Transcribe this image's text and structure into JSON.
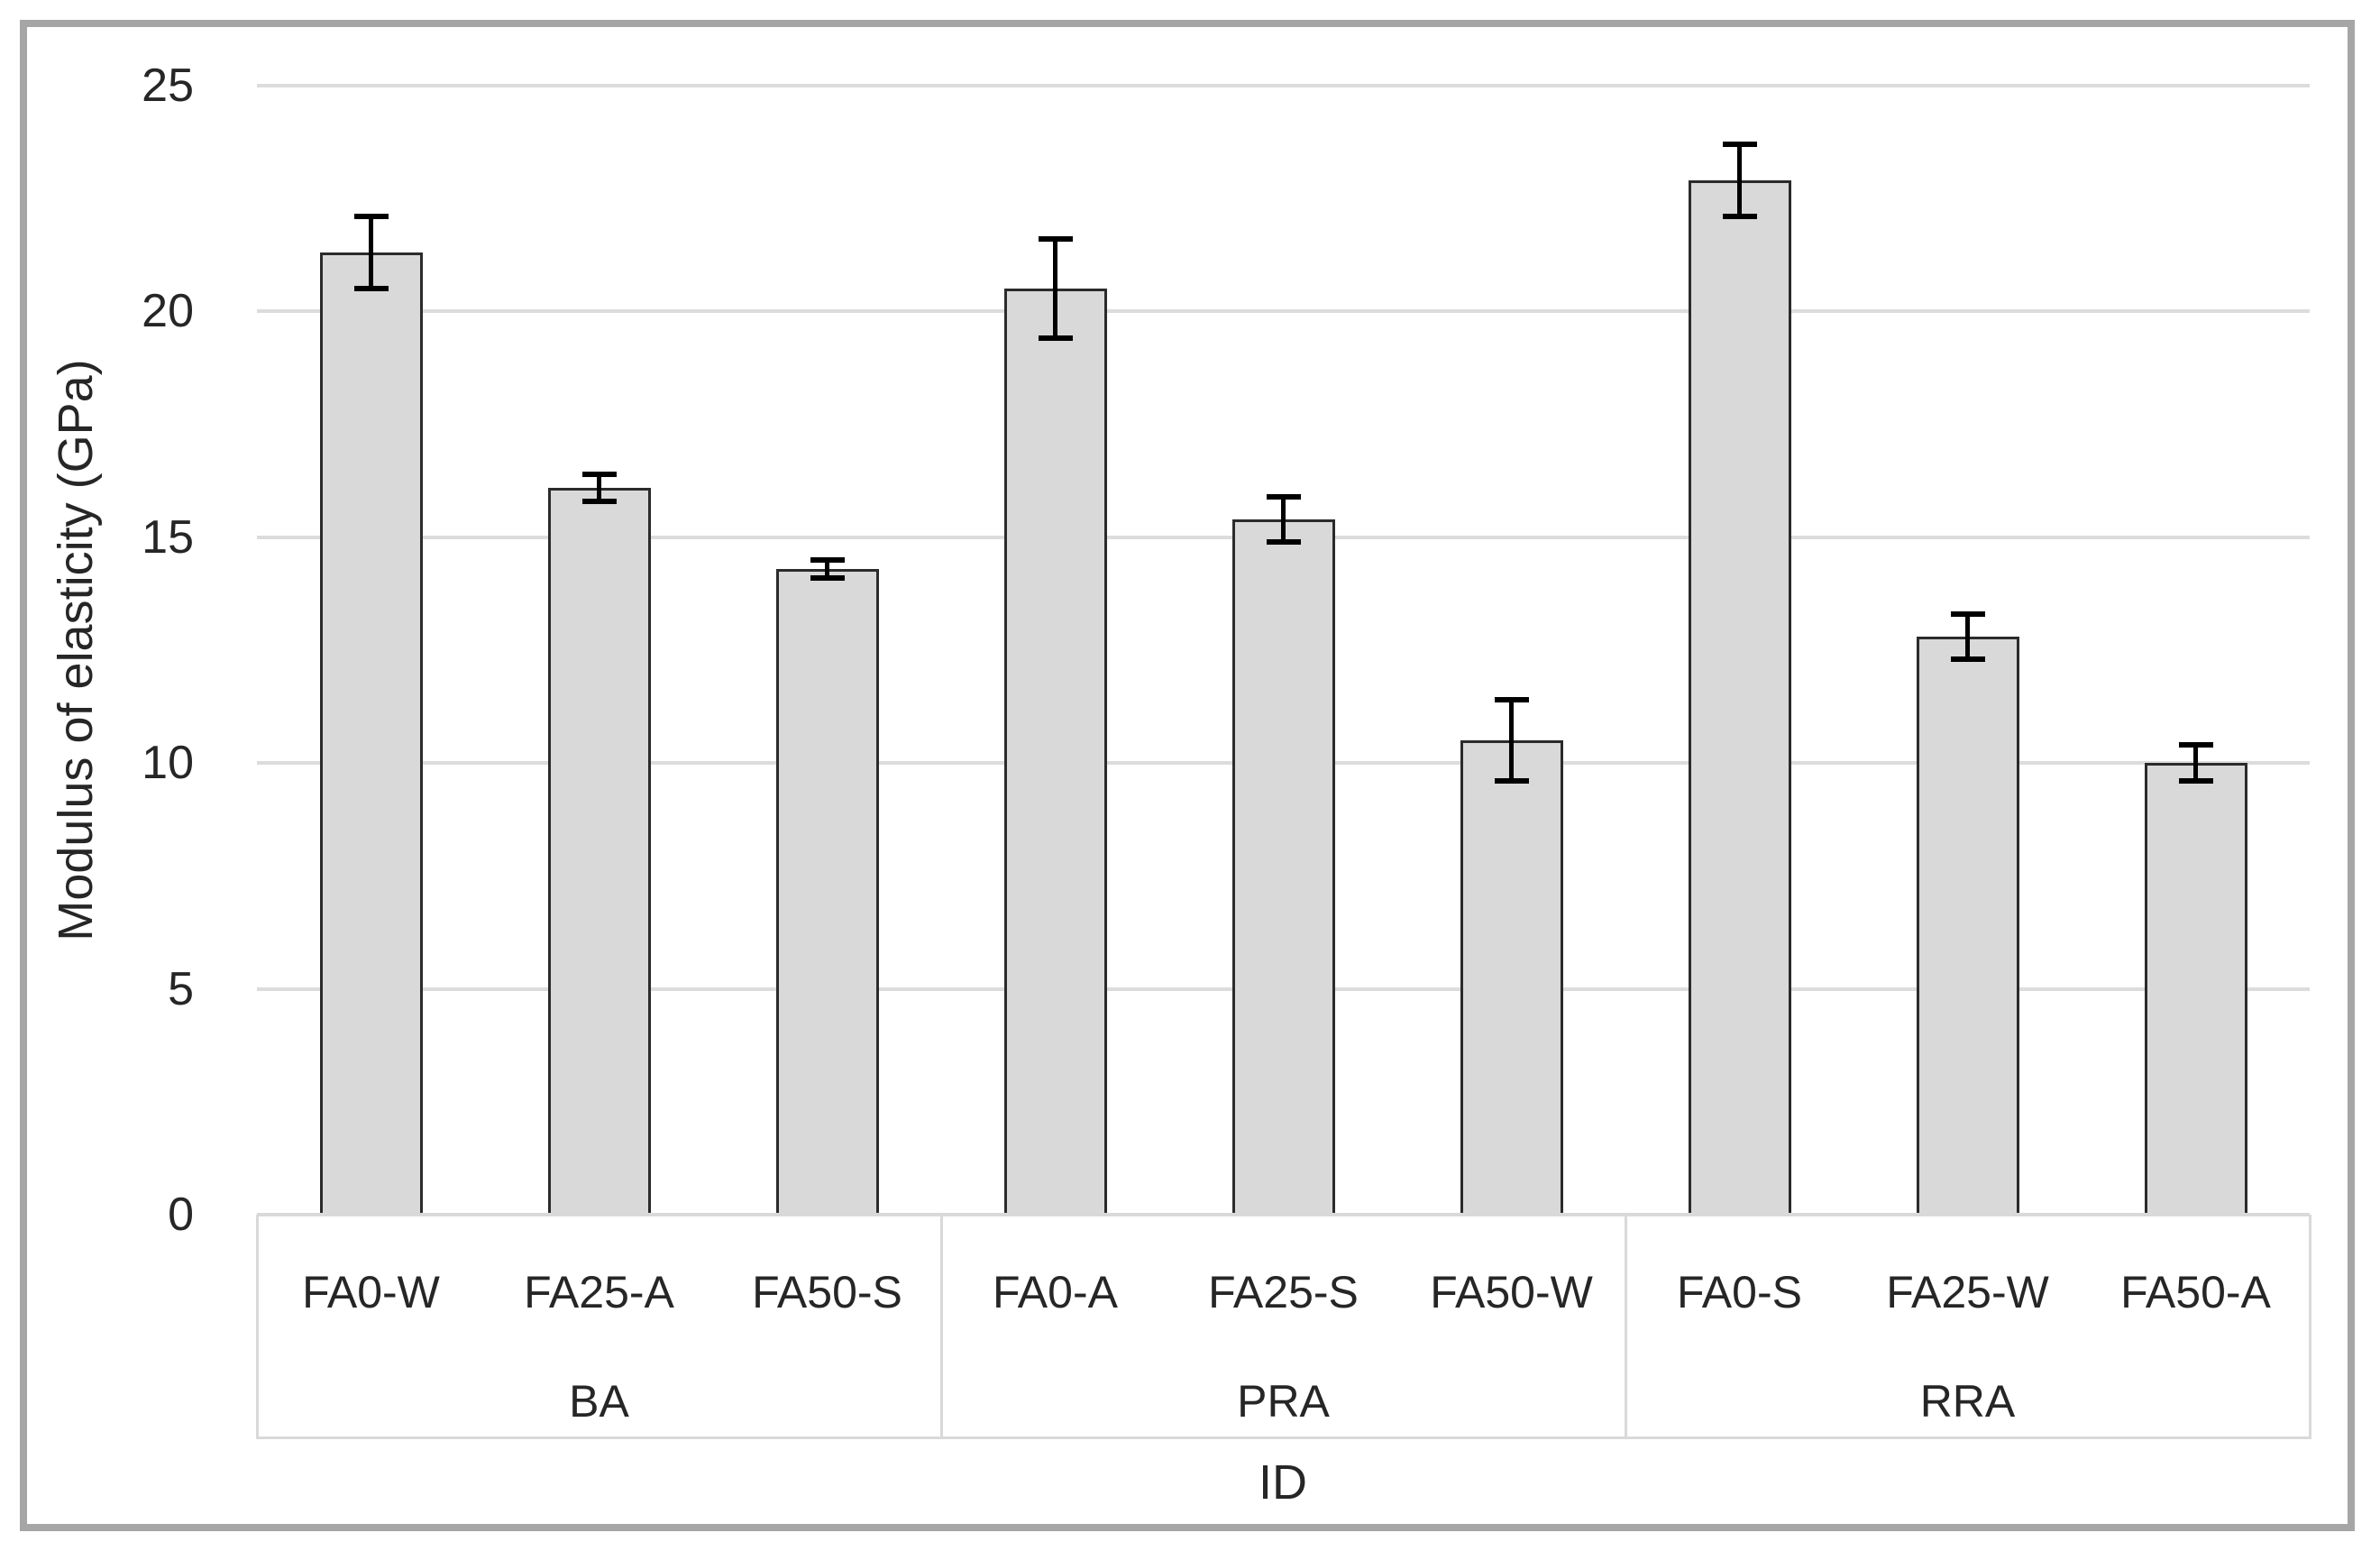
{
  "chart_data": {
    "type": "bar",
    "title": "",
    "xlabel": "ID",
    "ylabel": "Modulus of elasticity (GPa)",
    "ylim": [
      0,
      25
    ],
    "yticks": [
      0,
      5,
      10,
      15,
      20,
      25
    ],
    "grid": "horizontal",
    "legend": "none",
    "categories": [
      "FA0-W",
      "FA25-A",
      "FA50-S",
      "FA0-A",
      "FA25-S",
      "FA50-W",
      "FA0-S",
      "FA25-W",
      "FA50-A"
    ],
    "series": [
      {
        "name": "Modulus of elasticity (GPa)",
        "values": [
          21.3,
          16.1,
          14.3,
          20.5,
          15.4,
          10.5,
          22.9,
          12.8,
          10.0
        ],
        "error_bars": [
          0.8,
          0.3,
          0.2,
          1.1,
          0.5,
          0.9,
          0.8,
          0.5,
          0.4
        ]
      }
    ],
    "groups": [
      {
        "label": "BA",
        "categories": [
          "FA0-W",
          "FA25-A",
          "FA50-S"
        ]
      },
      {
        "label": "PRA",
        "categories": [
          "FA0-A",
          "FA25-S",
          "FA50-W"
        ]
      },
      {
        "label": "RRA",
        "categories": [
          "FA0-S",
          "FA25-W",
          "FA50-A"
        ]
      }
    ]
  },
  "colors": {
    "bar_fill": "#d9d9d9",
    "bar_outline": "#2b2b2b",
    "error_bar": "#000000",
    "gridline": "#dcdcdc",
    "axis_table_line": "#d9d9d9",
    "frame_border": "#a6a6a6",
    "text": "#262626",
    "background": "#ffffff"
  }
}
